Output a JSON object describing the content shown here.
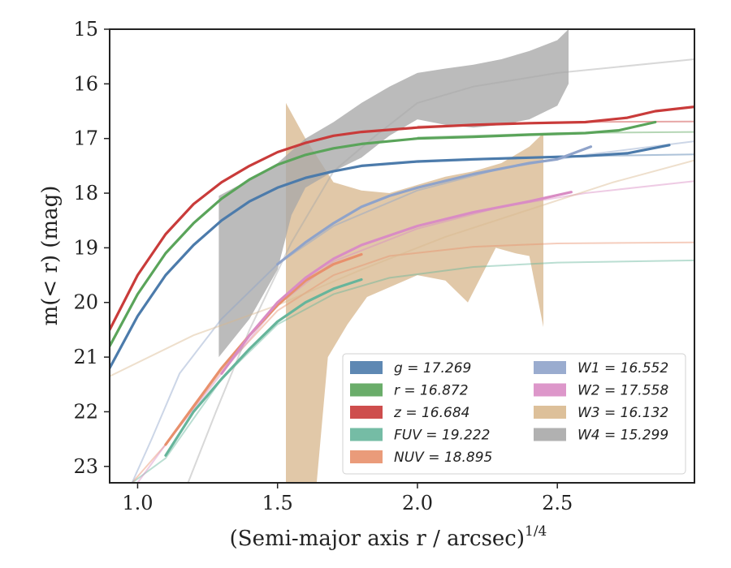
{
  "chart_data": {
    "type": "line",
    "xlabel": "(Semi-major axis r / arcsec)",
    "xlabel_sup": "1/4",
    "ylabel": "m(< r) (mag)",
    "xlim": [
      0.9,
      2.99
    ],
    "ylim": [
      23.3,
      15.0
    ],
    "y_inverted": true,
    "grid": false,
    "legend_position": "lower-right",
    "xticks": [
      1.0,
      1.5,
      2.0,
      2.5
    ],
    "xtick_labels": [
      "1.0",
      "1.5",
      "2.0",
      "2.5"
    ],
    "yticks": [
      15,
      16,
      17,
      18,
      19,
      20,
      21,
      22,
      23
    ],
    "ytick_labels": [
      "15",
      "16",
      "17",
      "18",
      "19",
      "20",
      "21",
      "22",
      "23"
    ],
    "series": [
      {
        "name": "g",
        "legend": "g = 17.269",
        "color": "#4c7bab",
        "points": [
          [
            0.9,
            21.2
          ],
          [
            1.0,
            20.25
          ],
          [
            1.1,
            19.5
          ],
          [
            1.2,
            18.95
          ],
          [
            1.3,
            18.5
          ],
          [
            1.4,
            18.15
          ],
          [
            1.5,
            17.9
          ],
          [
            1.6,
            17.72
          ],
          [
            1.7,
            17.6
          ],
          [
            1.8,
            17.5
          ],
          [
            2.0,
            17.42
          ],
          [
            2.2,
            17.38
          ],
          [
            2.4,
            17.35
          ],
          [
            2.6,
            17.32
          ],
          [
            2.75,
            17.27
          ],
          [
            2.9,
            17.12
          ]
        ],
        "extrapolation": [
          [
            2.0,
            17.43
          ],
          [
            2.5,
            17.33
          ],
          [
            2.99,
            17.29
          ]
        ]
      },
      {
        "name": "r",
        "legend": "r = 16.872",
        "color": "#5aa45a",
        "points": [
          [
            0.9,
            20.8
          ],
          [
            1.0,
            19.85
          ],
          [
            1.1,
            19.1
          ],
          [
            1.2,
            18.55
          ],
          [
            1.3,
            18.1
          ],
          [
            1.4,
            17.75
          ],
          [
            1.5,
            17.48
          ],
          [
            1.6,
            17.3
          ],
          [
            1.7,
            17.18
          ],
          [
            1.8,
            17.1
          ],
          [
            2.0,
            17.0
          ],
          [
            2.2,
            16.97
          ],
          [
            2.4,
            16.93
          ],
          [
            2.6,
            16.9
          ],
          [
            2.72,
            16.85
          ],
          [
            2.85,
            16.7
          ]
        ],
        "extrapolation": [
          [
            2.0,
            16.98
          ],
          [
            2.5,
            16.9
          ],
          [
            2.99,
            16.88
          ]
        ]
      },
      {
        "name": "z",
        "legend": "z = 16.684",
        "color": "#c93b3a",
        "points": [
          [
            0.9,
            20.5
          ],
          [
            1.0,
            19.5
          ],
          [
            1.1,
            18.75
          ],
          [
            1.2,
            18.2
          ],
          [
            1.3,
            17.8
          ],
          [
            1.4,
            17.5
          ],
          [
            1.5,
            17.25
          ],
          [
            1.6,
            17.08
          ],
          [
            1.7,
            16.95
          ],
          [
            1.8,
            16.88
          ],
          [
            2.0,
            16.8
          ],
          [
            2.2,
            16.75
          ],
          [
            2.4,
            16.72
          ],
          [
            2.6,
            16.7
          ],
          [
            2.75,
            16.62
          ],
          [
            2.85,
            16.5
          ],
          [
            2.99,
            16.42
          ]
        ],
        "extrapolation": [
          [
            2.0,
            16.78
          ],
          [
            2.5,
            16.7
          ],
          [
            2.99,
            16.69
          ]
        ]
      },
      {
        "name": "FUV",
        "legend": "FUV = 19.222",
        "color": "#66b59b",
        "points": [
          [
            1.1,
            22.8
          ],
          [
            1.2,
            22.0
          ],
          [
            1.3,
            21.4
          ],
          [
            1.4,
            20.85
          ],
          [
            1.5,
            20.35
          ],
          [
            1.6,
            20.0
          ],
          [
            1.7,
            19.75
          ],
          [
            1.8,
            19.58
          ]
        ],
        "extrapolation": [
          [
            0.98,
            23.3
          ],
          [
            1.1,
            22.85
          ],
          [
            1.3,
            21.4
          ],
          [
            1.5,
            20.4
          ],
          [
            1.7,
            19.85
          ],
          [
            1.9,
            19.55
          ],
          [
            2.2,
            19.35
          ],
          [
            2.5,
            19.27
          ],
          [
            2.99,
            19.23
          ]
        ]
      },
      {
        "name": "NUV",
        "legend": "NUV = 18.895",
        "color": "#e8906c",
        "points": [
          [
            1.1,
            22.6
          ],
          [
            1.2,
            21.9
          ],
          [
            1.3,
            21.2
          ],
          [
            1.4,
            20.6
          ],
          [
            1.5,
            20.05
          ],
          [
            1.6,
            19.6
          ],
          [
            1.7,
            19.3
          ],
          [
            1.8,
            19.12
          ]
        ],
        "extrapolation": [
          [
            0.98,
            23.3
          ],
          [
            1.1,
            22.6
          ],
          [
            1.3,
            21.25
          ],
          [
            1.5,
            20.15
          ],
          [
            1.7,
            19.5
          ],
          [
            1.9,
            19.15
          ],
          [
            2.2,
            18.98
          ],
          [
            2.5,
            18.92
          ],
          [
            2.99,
            18.9
          ]
        ]
      },
      {
        "name": "W1",
        "legend": "W1 = 16.552",
        "color": "#8fa3ca",
        "points": [
          [
            1.5,
            19.3
          ],
          [
            1.6,
            18.9
          ],
          [
            1.7,
            18.55
          ],
          [
            1.8,
            18.25
          ],
          [
            1.9,
            18.05
          ],
          [
            2.0,
            17.9
          ],
          [
            2.2,
            17.65
          ],
          [
            2.4,
            17.45
          ],
          [
            2.5,
            17.38
          ],
          [
            2.62,
            17.15
          ]
        ],
        "extrapolation": [
          [
            0.98,
            23.3
          ],
          [
            1.05,
            22.5
          ],
          [
            1.15,
            21.3
          ],
          [
            1.3,
            20.3
          ],
          [
            1.5,
            19.3
          ],
          [
            1.7,
            18.6
          ],
          [
            2.0,
            17.95
          ],
          [
            2.3,
            17.55
          ],
          [
            2.6,
            17.3
          ],
          [
            2.99,
            17.05
          ]
        ]
      },
      {
        "name": "W2",
        "legend": "W2 = 17.558",
        "color": "#d98cc4",
        "points": [
          [
            1.3,
            21.3
          ],
          [
            1.4,
            20.6
          ],
          [
            1.5,
            20.0
          ],
          [
            1.6,
            19.55
          ],
          [
            1.7,
            19.2
          ],
          [
            1.8,
            18.95
          ],
          [
            2.0,
            18.6
          ],
          [
            2.2,
            18.35
          ],
          [
            2.4,
            18.15
          ],
          [
            2.55,
            17.98
          ]
        ],
        "extrapolation": [
          [
            1.0,
            23.3
          ],
          [
            1.1,
            22.6
          ],
          [
            1.3,
            21.3
          ],
          [
            1.5,
            20.05
          ],
          [
            1.7,
            19.25
          ],
          [
            2.0,
            18.65
          ],
          [
            2.3,
            18.25
          ],
          [
            2.6,
            18.0
          ],
          [
            2.99,
            17.78
          ]
        ]
      },
      {
        "name": "W3",
        "legend": "W3 = 16.132",
        "color": "#d9b98f",
        "band_upper": [
          [
            1.53,
            16.35
          ],
          [
            1.6,
            17.0
          ],
          [
            1.7,
            17.8
          ],
          [
            1.8,
            17.95
          ],
          [
            1.9,
            18.0
          ],
          [
            2.0,
            17.85
          ],
          [
            2.1,
            17.7
          ],
          [
            2.2,
            17.6
          ],
          [
            2.3,
            17.45
          ],
          [
            2.4,
            17.15
          ],
          [
            2.45,
            16.9
          ]
        ],
        "band_lower": [
          [
            1.53,
            23.3
          ],
          [
            1.64,
            23.3
          ],
          [
            1.68,
            21.0
          ],
          [
            1.75,
            20.4
          ],
          [
            1.82,
            19.9
          ],
          [
            2.0,
            19.5
          ],
          [
            2.1,
            19.6
          ],
          [
            2.18,
            20.0
          ],
          [
            2.28,
            19.0
          ],
          [
            2.35,
            19.1
          ],
          [
            2.4,
            19.15
          ],
          [
            2.45,
            20.45
          ]
        ],
        "extrapolation": [
          [
            0.9,
            21.35
          ],
          [
            1.2,
            20.6
          ],
          [
            1.5,
            20.05
          ],
          [
            1.8,
            19.4
          ],
          [
            2.1,
            18.8
          ],
          [
            2.4,
            18.3
          ],
          [
            2.7,
            17.8
          ],
          [
            2.99,
            17.4
          ]
        ]
      },
      {
        "name": "W4",
        "legend": "W4 = 15.299",
        "color": "#a8a8a8",
        "band_upper": [
          [
            1.29,
            18.05
          ],
          [
            1.4,
            17.75
          ],
          [
            1.5,
            17.45
          ],
          [
            1.6,
            17.0
          ],
          [
            1.7,
            16.7
          ],
          [
            1.8,
            16.35
          ],
          [
            1.9,
            16.05
          ],
          [
            2.0,
            15.8
          ],
          [
            2.1,
            15.72
          ],
          [
            2.2,
            15.65
          ],
          [
            2.3,
            15.55
          ],
          [
            2.4,
            15.4
          ],
          [
            2.5,
            15.2
          ],
          [
            2.54,
            15.0
          ]
        ],
        "band_lower": [
          [
            1.29,
            21.0
          ],
          [
            1.4,
            20.3
          ],
          [
            1.5,
            19.4
          ],
          [
            1.55,
            18.4
          ],
          [
            1.6,
            17.9
          ],
          [
            1.7,
            17.6
          ],
          [
            1.8,
            17.35
          ],
          [
            1.9,
            16.95
          ],
          [
            2.0,
            16.65
          ],
          [
            2.1,
            16.75
          ],
          [
            2.2,
            16.8
          ],
          [
            2.3,
            16.75
          ],
          [
            2.4,
            16.65
          ],
          [
            2.5,
            16.4
          ],
          [
            2.54,
            16.0
          ]
        ],
        "extrapolation": [
          [
            1.18,
            23.3
          ],
          [
            1.28,
            22.0
          ],
          [
            1.4,
            20.5
          ],
          [
            1.55,
            18.9
          ],
          [
            1.7,
            17.6
          ],
          [
            1.85,
            16.95
          ],
          [
            2.0,
            16.35
          ],
          [
            2.2,
            16.05
          ],
          [
            2.5,
            15.8
          ],
          [
            2.99,
            15.55
          ]
        ]
      }
    ]
  }
}
